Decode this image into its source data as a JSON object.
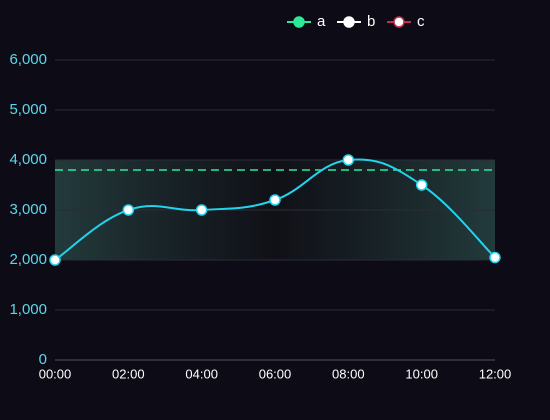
{
  "chart_data": {
    "type": "line",
    "categories": [
      "00:00",
      "02:00",
      "04:00",
      "06:00",
      "08:00",
      "10:00",
      "12:00"
    ],
    "series": [
      {
        "name": "a",
        "color": "#22d3ee",
        "legend_color": "#2ee89a",
        "values": [
          2000,
          3000,
          3000,
          3200,
          4000,
          3500,
          2050
        ]
      },
      {
        "name": "b",
        "legend_color": "#ffffff"
      },
      {
        "name": "c",
        "legend_color": "#c0304a"
      }
    ],
    "mark_area": [
      2000,
      4000
    ],
    "mark_line": 3800,
    "ylim": [
      0,
      6000
    ],
    "yticks": [
      {
        "value": 0,
        "label": "0"
      },
      {
        "value": 1000,
        "label": "1,000"
      },
      {
        "value": 2000,
        "label": "2,000"
      },
      {
        "value": 3000,
        "label": "3,000"
      },
      {
        "value": 4000,
        "label": "4,000"
      },
      {
        "value": 5000,
        "label": "5,000"
      },
      {
        "value": 6000,
        "label": "6,000"
      }
    ],
    "grid": true
  }
}
